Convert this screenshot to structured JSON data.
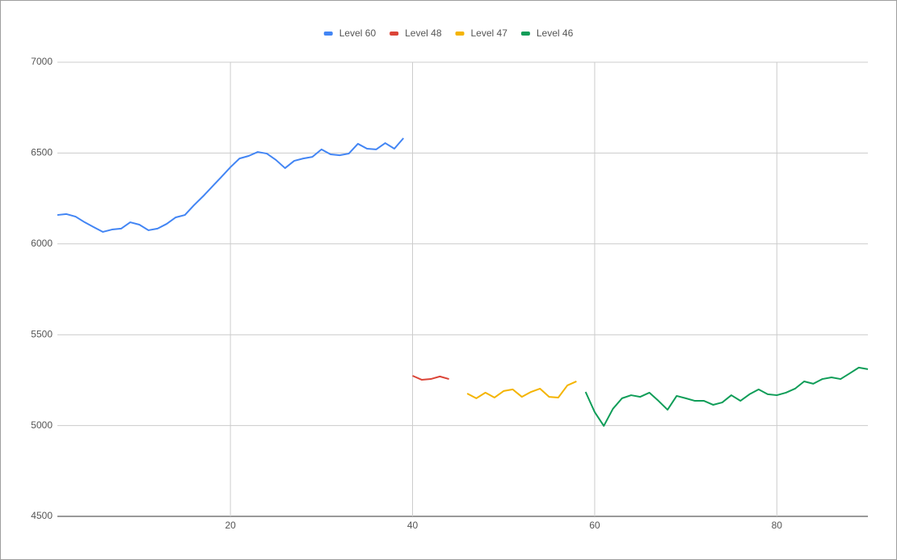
{
  "chart_data": {
    "type": "line",
    "x": [
      1,
      2,
      3,
      4,
      5,
      6,
      7,
      8,
      9,
      10,
      11,
      12,
      13,
      14,
      15,
      16,
      17,
      18,
      19,
      20,
      21,
      22,
      23,
      24,
      25,
      26,
      27,
      28,
      29,
      30,
      31,
      32,
      33,
      34,
      35,
      36,
      37,
      38,
      39,
      40,
      41,
      42,
      43,
      44,
      45,
      46,
      47,
      48,
      49,
      50,
      51,
      52,
      53,
      54,
      55,
      56,
      57,
      58,
      59,
      60,
      61,
      62,
      63,
      64,
      65,
      66,
      67,
      68,
      69,
      70,
      71,
      72,
      73,
      74,
      75,
      76,
      77,
      78,
      79,
      80,
      81,
      82,
      83,
      84,
      85,
      86,
      87,
      88,
      89,
      90
    ],
    "series": [
      {
        "name": "Level 60",
        "color": "#4285f4",
        "values": [
          6159,
          6164,
          6150,
          6119,
          6092,
          6066,
          6079,
          6084,
          6119,
          6106,
          6075,
          6084,
          6110,
          6146,
          6159,
          6213,
          6262,
          6315,
          6368,
          6422,
          6470,
          6484,
          6506,
          6497,
          6462,
          6417,
          6457,
          6470,
          6479,
          6520,
          6493,
          6488,
          6497,
          6551,
          6524,
          6520,
          6555,
          6524,
          6582,
          null,
          null,
          null,
          null,
          null,
          null,
          null,
          null,
          null,
          null,
          null,
          null,
          null,
          null,
          null,
          null,
          null,
          null,
          null,
          null,
          null,
          null,
          null,
          null,
          null,
          null,
          null,
          null,
          null,
          null,
          null,
          null,
          null,
          null,
          null,
          null,
          null,
          null,
          null,
          null,
          null,
          null,
          null,
          null,
          null,
          null,
          null,
          null,
          null,
          null,
          null
        ]
      },
      {
        "name": "Level 48",
        "color": "#db4437",
        "values": [
          null,
          null,
          null,
          null,
          null,
          null,
          null,
          null,
          null,
          null,
          null,
          null,
          null,
          null,
          null,
          null,
          null,
          null,
          null,
          null,
          null,
          null,
          null,
          null,
          null,
          null,
          null,
          null,
          null,
          null,
          null,
          null,
          null,
          null,
          null,
          null,
          null,
          null,
          null,
          5274,
          5252,
          5256,
          5270,
          5256,
          null,
          null,
          null,
          null,
          null,
          null,
          null,
          null,
          null,
          null,
          null,
          null,
          null,
          null,
          null,
          null,
          null,
          null,
          null,
          null,
          null,
          null,
          null,
          null,
          null,
          null,
          null,
          null,
          null,
          null,
          null,
          null,
          null,
          null,
          null,
          null,
          null,
          null,
          null,
          null,
          null,
          null,
          null,
          null,
          null,
          null
        ]
      },
      {
        "name": "Level 47",
        "color": "#f4b400",
        "values": [
          null,
          null,
          null,
          null,
          null,
          null,
          null,
          null,
          null,
          null,
          null,
          null,
          null,
          null,
          null,
          null,
          null,
          null,
          null,
          null,
          null,
          null,
          null,
          null,
          null,
          null,
          null,
          null,
          null,
          null,
          null,
          null,
          null,
          null,
          null,
          null,
          null,
          null,
          null,
          null,
          null,
          null,
          null,
          null,
          null,
          5176,
          5150,
          5181,
          5154,
          5190,
          5199,
          5158,
          5185,
          5203,
          5158,
          5154,
          5221,
          5243,
          null,
          null,
          null,
          null,
          null,
          null,
          null,
          null,
          null,
          null,
          null,
          null,
          null,
          null,
          null,
          null,
          null,
          null,
          null,
          null,
          null,
          null,
          null,
          null,
          null,
          null,
          null,
          null,
          null,
          null,
          null,
          null
        ]
      },
      {
        "name": "Level 46",
        "color": "#0f9d58",
        "values": [
          null,
          null,
          null,
          null,
          null,
          null,
          null,
          null,
          null,
          null,
          null,
          null,
          null,
          null,
          null,
          null,
          null,
          null,
          null,
          null,
          null,
          null,
          null,
          null,
          null,
          null,
          null,
          null,
          null,
          null,
          null,
          null,
          null,
          null,
          null,
          null,
          null,
          null,
          null,
          null,
          null,
          null,
          null,
          null,
          null,
          null,
          null,
          null,
          null,
          null,
          null,
          null,
          null,
          null,
          null,
          null,
          null,
          null,
          5185,
          5074,
          4998,
          5092,
          5150,
          5167,
          5158,
          5181,
          5136,
          5087,
          5163,
          5150,
          5136,
          5136,
          5114,
          5127,
          5167,
          5136,
          5172,
          5199,
          5172,
          5167,
          5181,
          5203,
          5243,
          5230,
          5256,
          5265,
          5256,
          5287,
          5319,
          5310
        ]
      }
    ],
    "xlim": [
      1,
      90
    ],
    "xticks": [
      20,
      40,
      60,
      80
    ],
    "ylim": [
      4500,
      7000
    ],
    "yticks": [
      4500,
      5000,
      5500,
      6000,
      6500,
      7000
    ],
    "grid": true,
    "legend": "top"
  }
}
